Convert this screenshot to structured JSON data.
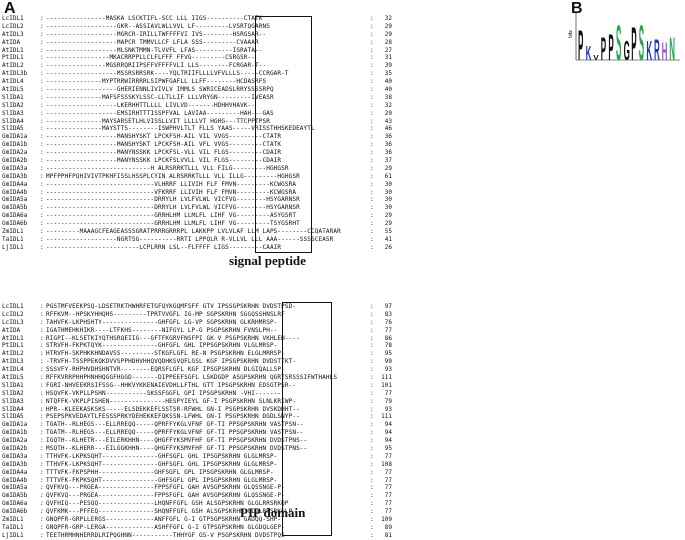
{
  "panels": {
    "a": "A",
    "b": "B"
  },
  "captions": {
    "signal": "signal peptide",
    "pip": "PIP domain"
  },
  "block1": [
    {
      "name": "LcIDL1",
      "seq": "----------------MASKA LSCKTIFL-SCC LLL IIGS----------CTATK",
      "num": "32"
    },
    {
      "name": "LcIDL2",
      "seq": "-------------------GKR--ASSIAVLWLLVVL LF---------LVSRTQGARNS",
      "num": "29"
    },
    {
      "name": "AtIDL3",
      "seq": "-------------------MGRCR-IRILLTWFFFFVI IVS--------HSRGSAR--",
      "num": "29"
    },
    {
      "name": "AtIDA",
      "seq": "-------------------MAPCR TMMVLLCF LFLA SSS---------CVAAAR",
      "num": "28"
    },
    {
      "name": "AtIDL1",
      "seq": "-------------------MLSNKTMMN-TLVVFL LFAS----------ISRATA--",
      "num": "27"
    },
    {
      "name": "PtIDL1",
      "seq": "-----------------MKACRRPPLLCLFLFFF FFVG---------CSRGSR--",
      "num": "31"
    },
    {
      "name": "AtIDL2",
      "seq": "----------------MGSRRQRIIPSFFVFFFFVLI LLS--------FCRGAR-T--",
      "num": "39"
    },
    {
      "name": "AtIDL3b",
      "seq": "-------------------MSSRSRRSRK----YQLTRIIFLLLLVFVLLLS-----CCRGAR-T",
      "num": "35"
    },
    {
      "name": "AtIDL4",
      "seq": "---------------MYPTRRWIRRRRLSIPWFGAFLL LLFF--------HCDASRFS",
      "num": "40"
    },
    {
      "name": "AtIDL5",
      "seq": "-------------------GHERIENNLIVIVLV IMMLS SWRICEADSLRRYSSSSRPQ",
      "num": "40"
    },
    {
      "name": "SlIDA1",
      "seq": "---------------MAFSFSSSKYLSSC-LLTLLIF LLLVRYGN---------IVEASR",
      "num": "38"
    },
    {
      "name": "SlIDA2",
      "seq": "-------------------LKERHHTTLLLL LIVLVD-------HDHHVHAVK--",
      "num": "32"
    },
    {
      "name": "SlIDA3",
      "seq": "-------------------EMSIRHTTTISSPFVAL LAVIAA---------HAH---GAS",
      "num": "29"
    },
    {
      "name": "SlIDA4",
      "seq": "---------------MAYSARSETLHLVISSLLVIT LLLLVT HGHG---TTCPPTPSR",
      "num": "43"
    },
    {
      "name": "SlIDA5",
      "seq": "---------------MAYSTTS--------ISWPHVLTLT FLLS YAAS-----VRISSTHHSKEDEAYTL",
      "num": "46"
    },
    {
      "name": "GmIDA1a",
      "seq": "-------------------MANSHYSKT LPCKFSH-AIL VIL VVGS---------CTATR",
      "num": "36"
    },
    {
      "name": "GmIDA1b",
      "seq": "-------------------MANSHYSKT LPCKFSH-AIL VFL VVGS---------CTATK",
      "num": "36"
    },
    {
      "name": "GmIDA2a",
      "seq": "-------------------MANYNSSKK LPCKFSL-VLL VIL FLGS---------CDAIR",
      "num": "36"
    },
    {
      "name": "GmIDA2b",
      "seq": "-------------------MANYNSSKK LPCKFSLVVLL VIL FLGS---------CDAIR",
      "num": "37"
    },
    {
      "name": "GmIDA3a",
      "seq": "----------------------------H ALRSRRKTLLL VLL FILG---------HGHGSR",
      "num": "29"
    },
    {
      "name": "GmIDA3b",
      "seq": "MPFPPHFPQHIVIVTPKHFISSLHSSPLCYIN ALRSRRKTLLL VLL ILLG---------HGHGSR",
      "num": "61"
    },
    {
      "name": "GmIDA4a",
      "seq": "-----------------------------VLHRRF LLIVIH FLF FMVN---------KCWGSRA",
      "num": "30"
    },
    {
      "name": "GmIDA4b",
      "seq": "-----------------------------VFKRRF LLIVIH FLF FMVN---------KCWGSRA",
      "num": "30"
    },
    {
      "name": "GmIDA5a",
      "seq": "-----------------------------DRRYLH LVLFVLWL VICFVG--------HSYGARNSR",
      "num": "30"
    },
    {
      "name": "GmIDA5b",
      "seq": "-----------------------------DRRYLH LVLFVLWL VICFVG--------HSYGARNSR",
      "num": "30"
    },
    {
      "name": "GmIDA6a",
      "seq": "-----------------------------GRRHLHM LLMLFL LIHF VG---------ASYGSRT",
      "num": "29"
    },
    {
      "name": "GmIDA6b",
      "seq": "-----------------------------GRRHLHM LLMLFL LIHF VG---------TSYGSRHT",
      "num": "29"
    },
    {
      "name": "ZmIDL1",
      "seq": "---------MAAAGCFEAGEASSSGRATPRRRGRRRPL LAKKPP LVLVLAF LLM LAPS--------CCQATARAR",
      "num": "55"
    },
    {
      "name": "TaIDL1",
      "seq": "-------------------NGRTSG----------RRTI LPPQLR R-VLLVL LLL AAA------SSSSCEASR",
      "num": "41"
    },
    {
      "name": "LjIDL1",
      "seq": "-------------------------LCPLRRN LSL--FLFFFF LIGS---------CAAIR",
      "num": "26"
    }
  ],
  "block2": [
    {
      "name": "LcIDL1",
      "seq": "PGSTMFVEEKPSQ-LDSETRKTHWHRFETGFQYKGQMFSFF GTV IPSSGPSKRHN DVDSTPSD-",
      "num": "97"
    },
    {
      "name": "LcIDL2",
      "seq": "RFFKVM--HPSKYHHQHS---------TPRTVVGFL IG-MP SGPSKRHN SGGQSSHNSLRF",
      "num": "83"
    },
    {
      "name": "LcIDL3",
      "seq": "TAHVFK-LKPHSHTY---------------GHFGFL LG-VP SGPSKRHN GLKRHMRSP-",
      "num": "76"
    },
    {
      "name": "AtIDA",
      "seq": "IGATHMEHKHIKR----LTFKHS--------NIFGYL LP-G PSGPSKRHN FVNSLPH--",
      "num": "77"
    },
    {
      "name": "AtIDL1",
      "seq": "RIGPI--KLSETKIYQTHSRQEIIG---GFTFKGRVFNSFPI GK V PSGPSKRHN VKHLEH----",
      "num": "86"
    },
    {
      "name": "PtIDL1",
      "seq": "STRVFH-FKPKTQYK---------------GHFGFL GHL IPPSGPSKRHN VLGLMRSP-",
      "num": "78"
    },
    {
      "name": "AtIDL2",
      "seq": "HTRVFH-SKPHKKHNDAVSS---------STKGFLGFL RE-N PSGPSKRHN ELGLMRRSP-",
      "num": "95"
    },
    {
      "name": "AtIDL3",
      "seq": "-TRVFH-TSSPPEKQKDVVSPPHDHVHHQVQDHKSVQFLGSL KGF IPSGPSKRHN DVDSTTKT-",
      "num": "99"
    },
    {
      "name": "AtIDL4",
      "seq": "SSSVFY-RHPHVDHSHNTVR--------EQRSFLGFL KGF IPSGPSKRHN DLGIQALLSP-",
      "num": "93"
    },
    {
      "name": "AtIDL5",
      "seq": "RFFKVRRPHHPHNHHQGGFHGGD-------DIPPEEFSGFL LSKDGDP ASGPSKRHN QGRTSRSSSIFWTHAHLS",
      "num": "111"
    },
    {
      "name": "SlIDA1",
      "seq": "FGRI-NHVEEKRSIFSSG--HHKVYKKENAIEVDHLLFTHL GTT IPSGPSKRHN EDSGTPSR--",
      "num": "101"
    },
    {
      "name": "SlIDA2",
      "seq": "HSQVFK-VKPLLPSHN-----------SKSSFGGFL GPI IPSGPSKRHN -VHI-------",
      "num": "77"
    },
    {
      "name": "SlIDA3",
      "seq": "NTQFFK-VKPLPISHEN---------------HESPYIEYL GF-I PSGPSKRHN SLNLKRIWP-",
      "num": "79"
    },
    {
      "name": "SlIDA4",
      "seq": "HPR--KLEEKASKSKS-----ELSDEKKEFLSSTSR-RFWHL GN-I PSGPSKRHN DVSKDHHT--",
      "num": "93"
    },
    {
      "name": "SlIDA5",
      "seq": "PSEPSPKVEDAYTLFESSSPRKYDEHEKKEFQKSSN-LFWHL GN-I PSGPSKRHN DGDLSNYP--",
      "num": "111"
    },
    {
      "name": "GmIDA1a",
      "seq": "TGATH--RLHEGS---ELLRREQQ-----QPRFFYKGLVFNF GF-TI PPSGPSKRHN VASTPSN--",
      "num": "94"
    },
    {
      "name": "GmIDA1b",
      "seq": "TGATM--RLHEGS---ELLRREQQ-----QPRFFYKGLVFNF GF-TI PPSGPSKRHN VASTPSN--",
      "num": "94"
    },
    {
      "name": "GmIDA2a",
      "seq": "IGQTH--KLHETR---EILERKHHN----QHGFFYKSMVFHF GF-TI PPSGPSKRHN DVDSTPNS--",
      "num": "94"
    },
    {
      "name": "GmIDA2b",
      "seq": "MSQTH--KLHERR---EILGGKHHN----QHGFFYKSMVFHF GF-TI PPSGPSKRHN DVDSTPNS--",
      "num": "95"
    },
    {
      "name": "GmIDA3a",
      "seq": "TTHVFK-LKPKSQHT---------------GHFSGFL GHL IPSGPSKRHN GLGLMRSP-",
      "num": "77"
    },
    {
      "name": "GmIDA3b",
      "seq": "TTHVFK-LKPKSQHT---------------GHFSGFL GHL IPSGPSKRHN GLGLMRSP-",
      "num": "108"
    },
    {
      "name": "GmIDA4a",
      "seq": "TTTVFK-FKPSPHH---------------GHFSGFL GPL IPSGPSKRHN GLGLMRSP-",
      "num": "77"
    },
    {
      "name": "GmIDA4b",
      "seq": "TTTVFK-FKPKSQHT---------------GHFSGFL GPL IPSGPSKRHN GLGLMRSP-",
      "num": "77"
    },
    {
      "name": "GmIDA5a",
      "seq": "QVFKVQ---PRGEA---------------FPPSFGFL GAH AVSGPSKRHN GLQSSNGE-P-",
      "num": "77"
    },
    {
      "name": "GmIDA5b",
      "seq": "QVFKVQ---PRGEA---------------FPPSFGFL GAH AVSGPSKRHN GLQSSNGE-P-",
      "num": "77"
    },
    {
      "name": "GmIDA6a",
      "seq": "QVFHIQ---PESQQ---------------LHQNFFGFL GSH ALSGPSKRHN GLGLRRSRKQP",
      "num": "77"
    },
    {
      "name": "GmIDA6b",
      "seq": "QVFKMK---PFFEQ---------------SHQNFFGFL GSH ALSGPSKRHN GLGLRRSRKGLP",
      "num": "77"
    },
    {
      "name": "ZmIDL1",
      "seq": "GNQPFR-GRPLLERGS-------------ANFFGFL G-I GTPSGPSKRHN GADQQ-SHP-",
      "num": "109"
    },
    {
      "name": "TaIDL1",
      "seq": "GNQPFR-GRP-LERGA-------------ASHFFGFL G-I GTPSGPSKRHN GLGDQLGEP-",
      "num": "89"
    },
    {
      "name": "LjIDL1",
      "seq": "TEETHRMHNHERRDLRIPQGHNN-----------THHYGF GS-V PSGPSKRHN DVDSTPQS--",
      "num": "81"
    }
  ],
  "logo": {
    "letters": [
      "P",
      "K",
      "V",
      "P",
      "P",
      "S",
      "G",
      "P",
      "S",
      "K",
      "R",
      "H",
      "N"
    ],
    "ylabel": "bits",
    "colors": {
      "hydro": "#111111",
      "polar": "#22a84a",
      "basic": "#2233cc",
      "acid": "#cc1f1f",
      "his": "#a14fd1"
    }
  }
}
